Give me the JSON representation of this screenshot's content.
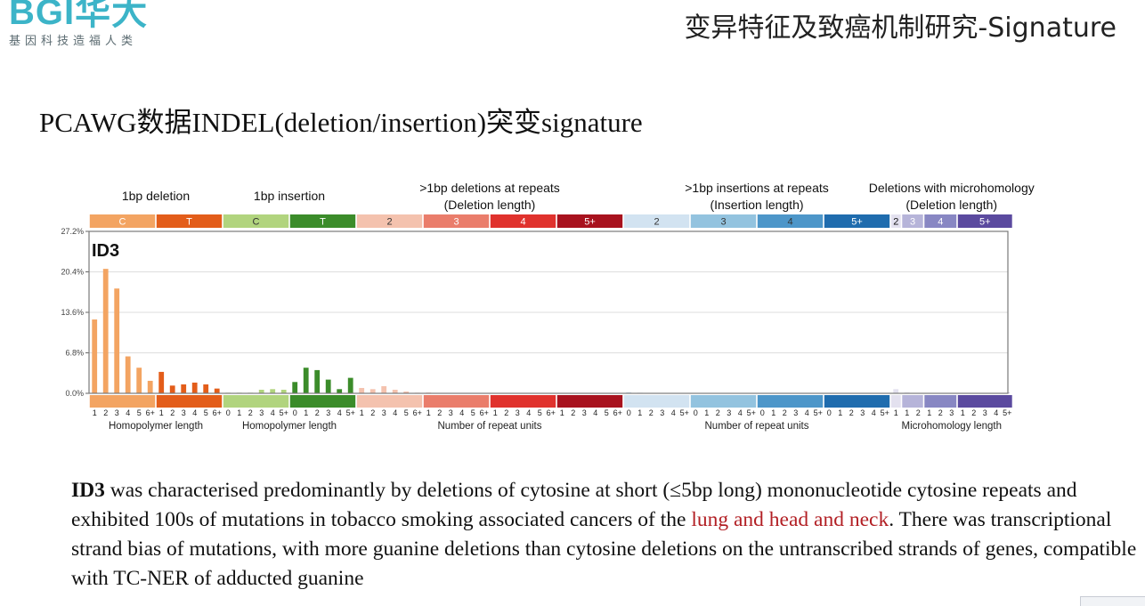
{
  "logo": {
    "brand": "BGI华大",
    "tagline": "基因科技造福人类"
  },
  "header": {
    "title": "变异特征及致癌机制研究-Signature"
  },
  "slide": {
    "subtitle": "PCAWG数据INDEL(deletion/insertion)突变signature"
  },
  "description": {
    "id": "ID3",
    "part1": " was characterised predominantly by deletions of cytosine at short (≤5bp long) mononucleotide cytosine repeats and  exhibited 100s of mutations in tobacco smoking associated cancers of the ",
    "highlight": "lung and head and neck",
    "part2": ". There  was transcriptional strand bias of mutations, with more guanine deletions than cytosine deletions on the untranscribed strands of genes, compatible with TC-NER of adducted guanine"
  },
  "chart_data": {
    "type": "bar",
    "signature": "ID3",
    "ylim": [
      0,
      27.2
    ],
    "yticks": [
      "27.2%",
      "20.4%",
      "13.6%",
      "6.8%",
      "0.0%"
    ],
    "ytick_values": [
      27.2,
      20.4,
      13.6,
      6.8,
      0
    ],
    "grid": true,
    "groups": [
      {
        "title": [
          "1bp deletion"
        ]
      },
      {
        "title": [
          "1bp insertion"
        ]
      },
      {
        "title": [
          ">1bp deletions at repeats",
          "(Deletion length)"
        ]
      },
      {
        "title": [
          ">1bp insertions at repeats",
          "(Insertion length)"
        ]
      },
      {
        "title": [
          "Deletions with microhomology",
          "(Deletion length)"
        ]
      }
    ],
    "x_axis_labels": [
      "Homopolymer length",
      "Homopolymer length",
      "Number of repeat units",
      "Number of repeat units",
      "Microhomology length"
    ],
    "categories": [
      {
        "header": "C",
        "color": "#f3a462",
        "text_color": "#ffffff",
        "ticks": [
          "1",
          "2",
          "3",
          "4",
          "5",
          "6+"
        ],
        "values": [
          12.4,
          20.9,
          17.6,
          6.2,
          4.3,
          2.1
        ]
      },
      {
        "header": "T",
        "color": "#e35d1a",
        "text_color": "#ffffff",
        "ticks": [
          "1",
          "2",
          "3",
          "4",
          "5",
          "6+"
        ],
        "values": [
          3.6,
          1.3,
          1.5,
          1.8,
          1.5,
          0.8
        ]
      },
      {
        "header": "C",
        "color": "#b1d47e",
        "text_color": "#333333",
        "ticks": [
          "0",
          "1",
          "2",
          "3",
          "4",
          "5+"
        ],
        "values": [
          0.1,
          0.1,
          0.1,
          0.6,
          0.7,
          0.6
        ]
      },
      {
        "header": "T",
        "color": "#3b8c2a",
        "text_color": "#ffffff",
        "ticks": [
          "0",
          "1",
          "2",
          "3",
          "4",
          "5+"
        ],
        "values": [
          1.9,
          4.3,
          3.9,
          2.3,
          0.7,
          2.6
        ]
      },
      {
        "header": "2",
        "color": "#f4c2ae",
        "text_color": "#333333",
        "ticks": [
          "1",
          "2",
          "3",
          "4",
          "5",
          "6+"
        ],
        "values": [
          0.9,
          0.7,
          1.2,
          0.6,
          0.3,
          0.1
        ]
      },
      {
        "header": "3",
        "color": "#ea7d6b",
        "text_color": "#ffffff",
        "ticks": [
          "1",
          "2",
          "3",
          "4",
          "5",
          "6+"
        ],
        "values": [
          0.1,
          0.05,
          0.05,
          0.05,
          0.05,
          0.05
        ]
      },
      {
        "header": "4",
        "color": "#e0322d",
        "text_color": "#ffffff",
        "ticks": [
          "1",
          "2",
          "3",
          "4",
          "5",
          "6+"
        ],
        "values": [
          0.05,
          0.05,
          0.05,
          0.05,
          0.05,
          0.05
        ]
      },
      {
        "header": "5+",
        "color": "#a8121e",
        "text_color": "#ffffff",
        "ticks": [
          "1",
          "2",
          "3",
          "4",
          "5",
          "6+"
        ],
        "values": [
          0.05,
          0.05,
          0.05,
          0.05,
          0.05,
          0.05
        ]
      },
      {
        "header": "2",
        "color": "#d2e3f1",
        "text_color": "#333333",
        "ticks": [
          "0",
          "1",
          "2",
          "3",
          "4",
          "5+"
        ],
        "values": [
          0.2,
          0.1,
          0.05,
          0.05,
          0.05,
          0.05
        ]
      },
      {
        "header": "3",
        "color": "#93c3df",
        "text_color": "#333333",
        "ticks": [
          "0",
          "1",
          "2",
          "3",
          "4",
          "5+"
        ],
        "values": [
          0.05,
          0.05,
          0.05,
          0.05,
          0.05,
          0.05
        ]
      },
      {
        "header": "4",
        "color": "#4d96c9",
        "text_color": "#333333",
        "ticks": [
          "0",
          "1",
          "2",
          "3",
          "4",
          "5+"
        ],
        "values": [
          0.05,
          0.05,
          0.05,
          0.05,
          0.05,
          0.05
        ]
      },
      {
        "header": "5+",
        "color": "#1f6cae",
        "text_color": "#ffffff",
        "ticks": [
          "0",
          "1",
          "2",
          "3",
          "4",
          "5+"
        ],
        "values": [
          0.05,
          0.05,
          0.05,
          0.05,
          0.05,
          0.05
        ]
      },
      {
        "header": "2",
        "color": "#e3e1ef",
        "text_color": "#111111",
        "ticks": [
          "1"
        ],
        "values": [
          0.7
        ]
      },
      {
        "header": "3",
        "color": "#b6b4d9",
        "text_color": "#ffffff",
        "ticks": [
          "1",
          "2"
        ],
        "values": [
          0.1,
          0.05
        ]
      },
      {
        "header": "4",
        "color": "#8887c3",
        "text_color": "#ffffff",
        "ticks": [
          "1",
          "2",
          "3"
        ],
        "values": [
          0.05,
          0.05,
          0.05
        ]
      },
      {
        "header": "5+",
        "color": "#5b4a9f",
        "text_color": "#ffffff",
        "ticks": [
          "1",
          "2",
          "3",
          "4",
          "5+"
        ],
        "values": [
          0.05,
          0.05,
          0.05,
          0.05,
          0.05
        ]
      }
    ]
  }
}
